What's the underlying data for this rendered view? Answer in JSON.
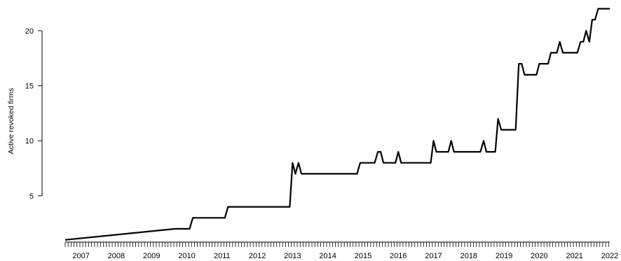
{
  "chart_data": {
    "type": "line",
    "title": "",
    "xlabel": "",
    "ylabel": "Active revoked firms",
    "grid": false,
    "legend": "none",
    "line_color": "#000000",
    "xlim": [
      2006.55,
      2022.0
    ],
    "ylim": [
      0,
      22
    ],
    "x_ticks": [
      "2007",
      "2008",
      "2009",
      "2010",
      "2011",
      "2012",
      "2013",
      "2014",
      "2015",
      "2016",
      "2017",
      "2018",
      "2019",
      "2020",
      "2021",
      "2022"
    ],
    "y_ticks": [
      "5",
      "10",
      "15",
      "20"
    ],
    "series": [
      {
        "points": [
          [
            2006.55,
            1
          ],
          [
            2009.67,
            2
          ],
          [
            2010.08,
            2
          ],
          [
            2010.17,
            3
          ],
          [
            2011.08,
            3
          ],
          [
            2011.17,
            4
          ],
          [
            2012.92,
            4
          ],
          [
            2013.0,
            8
          ],
          [
            2013.08,
            7
          ],
          [
            2013.17,
            8
          ],
          [
            2013.25,
            7
          ],
          [
            2014.83,
            7
          ],
          [
            2014.92,
            8
          ],
          [
            2015.33,
            8
          ],
          [
            2015.42,
            9
          ],
          [
            2015.5,
            9
          ],
          [
            2015.58,
            8
          ],
          [
            2015.92,
            8
          ],
          [
            2016.0,
            9
          ],
          [
            2016.08,
            8
          ],
          [
            2016.92,
            8
          ],
          [
            2017.0,
            10
          ],
          [
            2017.08,
            9
          ],
          [
            2017.42,
            9
          ],
          [
            2017.5,
            10
          ],
          [
            2017.58,
            9
          ],
          [
            2018.33,
            9
          ],
          [
            2018.42,
            10
          ],
          [
            2018.5,
            9
          ],
          [
            2018.75,
            9
          ],
          [
            2018.83,
            12
          ],
          [
            2018.92,
            11
          ],
          [
            2019.33,
            11
          ],
          [
            2019.42,
            17
          ],
          [
            2019.5,
            17
          ],
          [
            2019.58,
            16
          ],
          [
            2019.92,
            16
          ],
          [
            2020.0,
            17
          ],
          [
            2020.25,
            17
          ],
          [
            2020.33,
            18
          ],
          [
            2020.5,
            18
          ],
          [
            2020.58,
            19
          ],
          [
            2020.67,
            18
          ],
          [
            2021.08,
            18
          ],
          [
            2021.17,
            19
          ],
          [
            2021.25,
            19
          ],
          [
            2021.33,
            20
          ],
          [
            2021.42,
            19
          ],
          [
            2021.5,
            21
          ],
          [
            2021.58,
            21
          ],
          [
            2021.67,
            22
          ],
          [
            2022.0,
            22
          ]
        ]
      }
    ]
  }
}
